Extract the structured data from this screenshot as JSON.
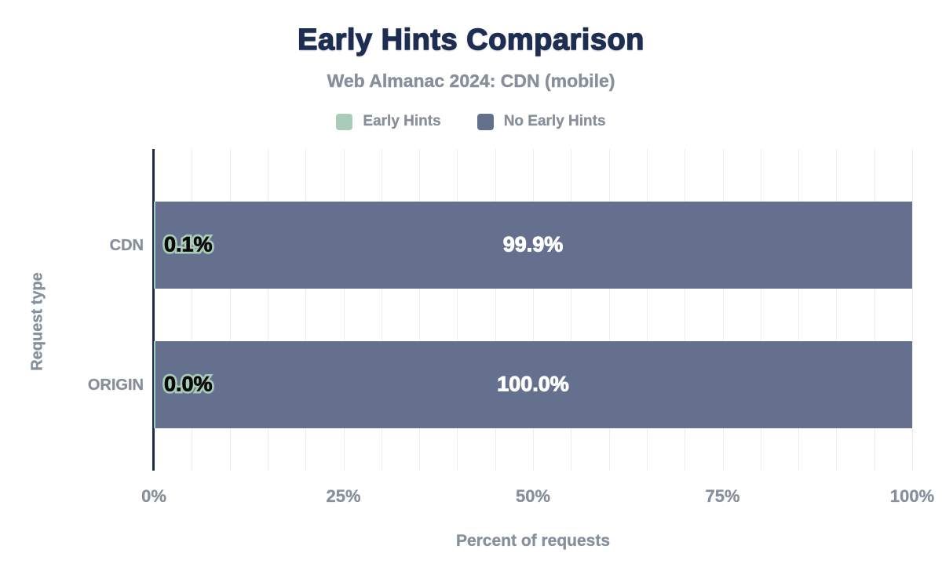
{
  "colors": {
    "title_navy": "#1e2d52",
    "axis_navy": "#1c2a4e",
    "muted_gray_text": "#868f9b",
    "gridline": "#ededed",
    "early_hints_green": "#a9ccb8",
    "no_early_hints_blue": "#64708d",
    "center_label_white": "#ffffff",
    "outlined_label_black": "#0a0a0a",
    "background": "#ffffff"
  },
  "chart_data": {
    "type": "bar",
    "orientation": "horizontal",
    "stacked": true,
    "title": "Early Hints Comparison",
    "subtitle": "Web Almanac 2024: CDN (mobile)",
    "xlabel": "Percent of requests",
    "ylabel": "Request type",
    "xlim": [
      0,
      100
    ],
    "xtick_values": [
      0,
      25,
      50,
      75,
      100
    ],
    "xtick_labels": [
      "0%",
      "25%",
      "50%",
      "75%",
      "100%"
    ],
    "minor_grid_step_percent": 5,
    "grid": "vertical minor gridlines, light gray",
    "legend_position": "top",
    "categories": [
      "CDN",
      "ORIGIN"
    ],
    "series": [
      {
        "name": "Early Hints",
        "color": "#a9ccb8",
        "values": [
          0.1,
          0.0
        ],
        "data_labels": [
          "0.1%",
          "0.0%"
        ],
        "label_style": "black text with green outline, left-aligned inside bar"
      },
      {
        "name": "No Early Hints",
        "color": "#64708d",
        "values": [
          99.9,
          100.0
        ],
        "data_labels": [
          "99.9%",
          "100.0%"
        ],
        "label_style": "white text centered in bar"
      }
    ]
  }
}
